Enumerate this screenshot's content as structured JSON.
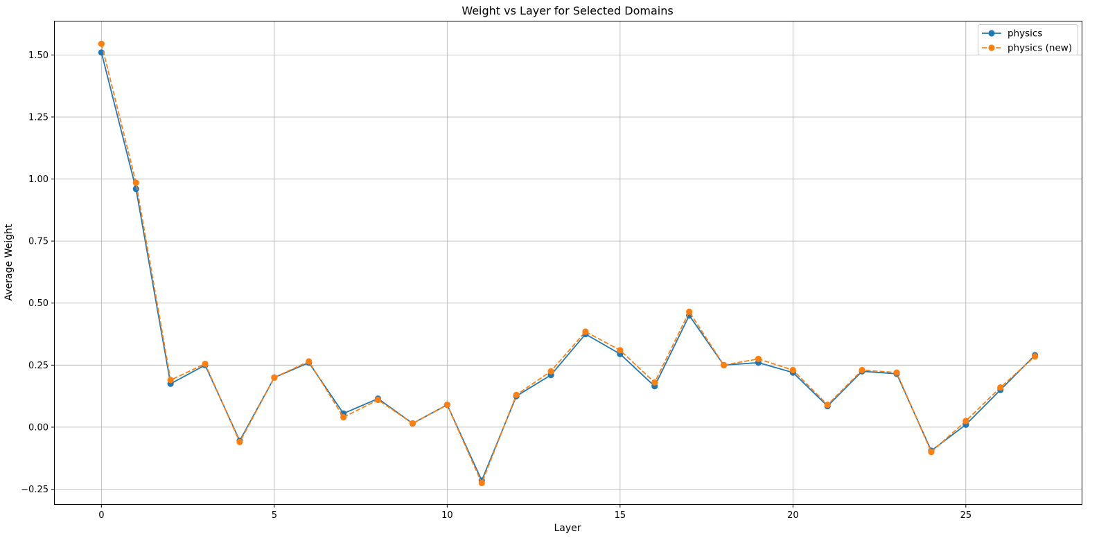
{
  "chart_data": {
    "type": "line",
    "title": "Weight vs Layer for Selected Domains",
    "xlabel": "Layer",
    "ylabel": "Average Weight",
    "xlim": [
      -1.35,
      28.35
    ],
    "ylim": [
      -0.31,
      1.635
    ],
    "xticks": [
      0,
      5,
      10,
      15,
      20,
      25
    ],
    "yticks": [
      -0.25,
      0.0,
      0.25,
      0.5,
      0.75,
      1.0,
      1.25,
      1.5
    ],
    "ytick_labels": [
      "−0.25",
      "0.00",
      "0.25",
      "0.50",
      "0.75",
      "1.00",
      "1.25",
      "1.50"
    ],
    "grid": true,
    "legend_position": "top-right",
    "x": [
      0,
      1,
      2,
      3,
      4,
      5,
      6,
      7,
      8,
      9,
      10,
      11,
      12,
      13,
      14,
      15,
      16,
      17,
      18,
      19,
      20,
      21,
      22,
      23,
      24,
      25,
      26,
      27
    ],
    "series": [
      {
        "name": "physics",
        "color": "#1f77b4",
        "linestyle": "solid",
        "values": [
          1.51,
          0.96,
          0.175,
          0.25,
          -0.055,
          0.2,
          0.26,
          0.055,
          0.115,
          0.015,
          0.09,
          -0.215,
          0.125,
          0.21,
          0.375,
          0.295,
          0.165,
          0.45,
          0.25,
          0.26,
          0.22,
          0.085,
          0.225,
          0.215,
          -0.095,
          0.01,
          0.15,
          0.29
        ]
      },
      {
        "name": "physics (new)",
        "color": "#ff7f0e",
        "linestyle": "dashed",
        "values": [
          1.545,
          0.985,
          0.19,
          0.255,
          -0.06,
          0.2,
          0.265,
          0.04,
          0.11,
          0.015,
          0.09,
          -0.225,
          0.13,
          0.225,
          0.385,
          0.31,
          0.18,
          0.465,
          0.25,
          0.275,
          0.23,
          0.09,
          0.23,
          0.22,
          -0.1,
          0.025,
          0.16,
          0.285
        ]
      }
    ]
  }
}
